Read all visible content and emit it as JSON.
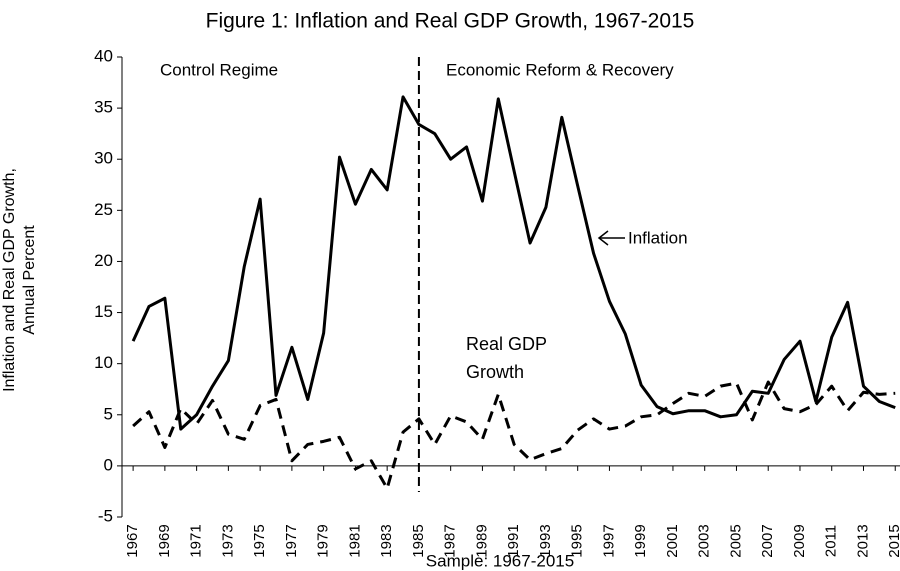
{
  "chart_data": {
    "type": "line",
    "title": "Figure 1: Inflation and Real GDP Growth, 1967-2015",
    "x_label": "Sample: 1967-2015",
    "y_label": "Inflation and Real GDP Growth, Annual Percent",
    "annotations": [
      "Control Regime",
      "Economic Reform  & Recovery"
    ],
    "regime_break": 1985,
    "x": [
      1967,
      1968,
      1969,
      1970,
      1971,
      1972,
      1973,
      1974,
      1975,
      1976,
      1977,
      1978,
      1979,
      1980,
      1981,
      1982,
      1983,
      1984,
      1985,
      1986,
      1987,
      1988,
      1989,
      1990,
      1991,
      1992,
      1993,
      1994,
      1995,
      1996,
      1997,
      1998,
      1999,
      2000,
      2001,
      2002,
      2003,
      2004,
      2005,
      2006,
      2007,
      2008,
      2009,
      2010,
      2011,
      2012,
      2013,
      2014,
      2015
    ],
    "series": [
      {
        "name": "Inflation",
        "color": "#000000",
        "line_style": "solid",
        "values": [
          12.2,
          15.6,
          16.4,
          3.6,
          5.0,
          7.8,
          10.3,
          19.5,
          26.1,
          6.9,
          11.6,
          6.5,
          13.0,
          30.2,
          25.6,
          29.0,
          27.0,
          36.1,
          33.4,
          32.5,
          30.0,
          31.2,
          25.9,
          35.9,
          28.8,
          21.8,
          25.3,
          34.1,
          27.4,
          20.8,
          16.1,
          12.9,
          7.9,
          5.8,
          5.1,
          5.4,
          5.4,
          4.8,
          5.0,
          7.3,
          7.1,
          10.4,
          12.2,
          6.3,
          12.6,
          16.0,
          7.8,
          6.3,
          5.7
        ]
      },
      {
        "name": "Real GDP Growth",
        "color": "#000000",
        "line_style": "dashed",
        "values": [
          3.9,
          5.3,
          1.8,
          5.6,
          4.1,
          6.4,
          3.1,
          2.6,
          5.9,
          6.5,
          0.5,
          2.1,
          2.4,
          2.8,
          -0.3,
          0.5,
          -2.2,
          3.3,
          4.6,
          2.1,
          4.9,
          4.3,
          2.6,
          7.0,
          2.1,
          0.6,
          1.2,
          1.7,
          3.5,
          4.6,
          3.6,
          3.9,
          4.8,
          5.0,
          6.1,
          7.1,
          6.8,
          7.8,
          8.1,
          4.5,
          8.2,
          5.6,
          5.3,
          6.0,
          7.8,
          5.4,
          7.2,
          7.0,
          7.1
        ]
      }
    ],
    "xlim": [
      1966.3,
      2015.3
    ],
    "xticks": [
      1967,
      1969,
      1971,
      1973,
      1975,
      1977,
      1979,
      1981,
      1983,
      1985,
      1987,
      1989,
      1991,
      1993,
      1995,
      1997,
      1999,
      2001,
      2003,
      2005,
      2007,
      2009,
      2011,
      2013,
      2015
    ],
    "ylim": [
      -5,
      40
    ],
    "yticks": [
      -5,
      0,
      5,
      10,
      15,
      20,
      25,
      30,
      35,
      40
    ],
    "grid": false
  }
}
